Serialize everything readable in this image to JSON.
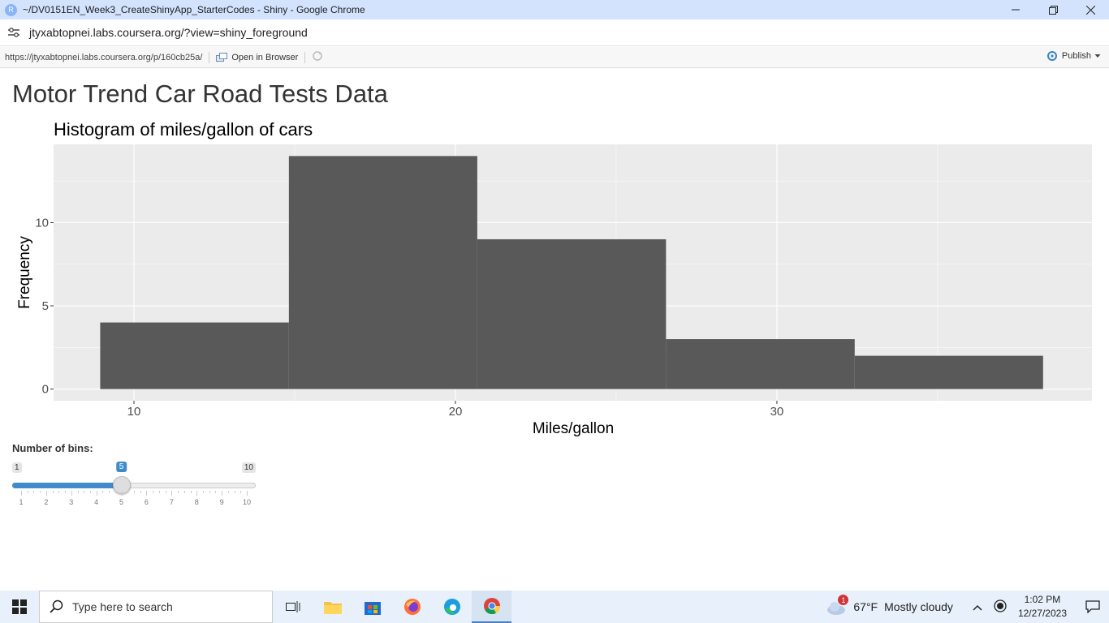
{
  "window": {
    "title": "~/DV0151EN_Week3_CreateShinyApp_StarterCodes - Shiny - Google Chrome",
    "app_icon_letter": "R"
  },
  "address": {
    "url": "jtyxabtopnei.labs.coursera.org/?view=shiny_foreground"
  },
  "viewer": {
    "url": "https://jtyxabtopnei.labs.coursera.org/p/160cb25a/",
    "open_browser": "Open in Browser",
    "publish": "Publish"
  },
  "app": {
    "title": "Motor Trend Car Road Tests Data"
  },
  "chart_data": {
    "type": "bar",
    "title": "Histogram of miles/gallon of cars",
    "xlabel": "Miles/gallon",
    "ylabel": "Frequency",
    "bins": [
      {
        "x0": 8.95,
        "x1": 14.82,
        "count": 4
      },
      {
        "x0": 14.82,
        "x1": 20.68,
        "count": 14
      },
      {
        "x0": 20.68,
        "x1": 26.55,
        "count": 9
      },
      {
        "x0": 26.55,
        "x1": 32.42,
        "count": 3
      },
      {
        "x0": 32.42,
        "x1": 38.28,
        "count": 2
      }
    ],
    "xlim": [
      7.5,
      39.8
    ],
    "ylim": [
      -0.7,
      14.7
    ],
    "xticks": [
      10,
      20,
      30
    ],
    "yticks": [
      0,
      5,
      10
    ],
    "bar_color": "#595959",
    "panel_color": "#ebebeb",
    "grid": true
  },
  "slider": {
    "label": "Number of bins:",
    "min": 1,
    "max": 10,
    "value": 5,
    "min_label": "1",
    "max_label": "10",
    "value_label": "5",
    "grid_labels": [
      "1",
      "2",
      "3",
      "4",
      "5",
      "6",
      "7",
      "8",
      "9",
      "10"
    ],
    "accent": "#428bca"
  },
  "taskbar": {
    "search_placeholder": "Type here to search",
    "weather_badge": "1",
    "temperature": "67°F",
    "weather": "Mostly cloudy",
    "time": "1:02 PM",
    "date": "12/27/2023"
  }
}
